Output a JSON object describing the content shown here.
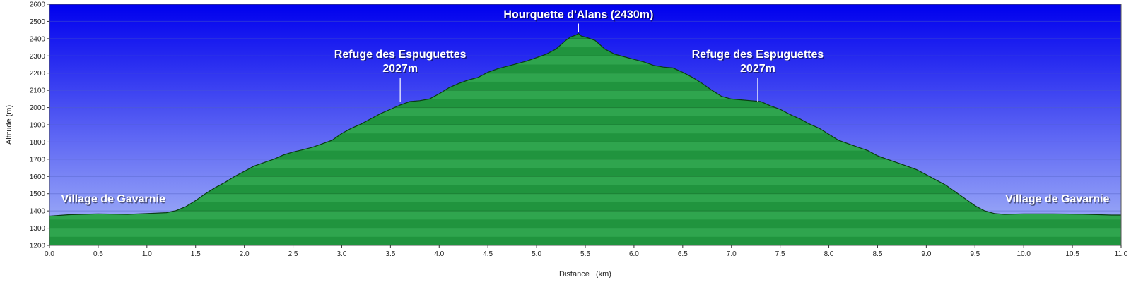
{
  "chart_data": {
    "type": "area",
    "title": "",
    "xlabel": "Distance   (km)",
    "ylabel": "Altitude (m)",
    "xlim": [
      0,
      11.0
    ],
    "ylim": [
      1200,
      2600
    ],
    "xticks": [
      "0.0",
      "0.5",
      "1.0",
      "1.5",
      "2.0",
      "2.5",
      "3.0",
      "3.5",
      "4.0",
      "4.5",
      "5.0",
      "5.5",
      "6.0",
      "6.5",
      "7.0",
      "7.5",
      "8.0",
      "8.5",
      "9.0",
      "9.5",
      "10.0",
      "10.5",
      "11.0"
    ],
    "yticks": [
      "1200",
      "1300",
      "1400",
      "1500",
      "1600",
      "1700",
      "1800",
      "1900",
      "2000",
      "2100",
      "2200",
      "2300",
      "2400",
      "2500",
      "2600"
    ],
    "grid": true,
    "colors": {
      "sky_top": "#0000ee",
      "sky_bottom": "#aabaf8",
      "fill": "#23a043",
      "outline": "#0a3c12"
    },
    "series": [
      {
        "x": [
          0.0,
          0.2,
          0.5,
          0.8,
          1.0,
          1.2,
          1.3,
          1.4,
          1.5,
          1.6,
          1.7,
          1.8,
          1.9,
          2.0,
          2.1,
          2.2,
          2.3,
          2.4,
          2.5,
          2.6,
          2.7,
          2.8,
          2.9,
          3.0,
          3.1,
          3.2,
          3.3,
          3.4,
          3.5,
          3.6,
          3.7,
          3.8,
          3.9,
          4.0,
          4.1,
          4.2,
          4.3,
          4.4,
          4.5,
          4.6,
          4.7,
          4.8,
          4.9,
          5.0,
          5.1,
          5.2,
          5.3,
          5.35,
          5.4,
          5.43,
          5.46,
          5.5,
          5.6,
          5.7,
          5.8,
          5.9,
          6.0,
          6.1,
          6.2,
          6.3,
          6.4,
          6.5,
          6.6,
          6.7,
          6.8,
          6.9,
          7.0,
          7.1,
          7.2,
          7.3,
          7.4,
          7.5,
          7.6,
          7.7,
          7.8,
          7.9,
          8.0,
          8.1,
          8.2,
          8.3,
          8.4,
          8.5,
          8.6,
          8.7,
          8.8,
          8.9,
          9.0,
          9.1,
          9.2,
          9.3,
          9.4,
          9.5,
          9.6,
          9.7,
          9.8,
          10.0,
          10.3,
          10.6,
          10.9,
          11.0
        ],
        "values": [
          1370,
          1378,
          1383,
          1380,
          1385,
          1390,
          1402,
          1425,
          1460,
          1500,
          1535,
          1565,
          1600,
          1630,
          1660,
          1680,
          1700,
          1725,
          1742,
          1755,
          1770,
          1790,
          1810,
          1850,
          1880,
          1905,
          1935,
          1965,
          1990,
          2015,
          2035,
          2040,
          2050,
          2080,
          2115,
          2140,
          2160,
          2175,
          2205,
          2225,
          2240,
          2255,
          2270,
          2290,
          2310,
          2340,
          2390,
          2410,
          2420,
          2430,
          2415,
          2410,
          2390,
          2340,
          2310,
          2295,
          2280,
          2265,
          2245,
          2235,
          2230,
          2205,
          2175,
          2140,
          2100,
          2065,
          2050,
          2045,
          2040,
          2035,
          2010,
          1990,
          1960,
          1935,
          1905,
          1880,
          1845,
          1810,
          1790,
          1770,
          1750,
          1720,
          1700,
          1680,
          1660,
          1640,
          1610,
          1580,
          1550,
          1510,
          1470,
          1430,
          1400,
          1385,
          1380,
          1383,
          1383,
          1381,
          1376,
          1376
        ]
      }
    ],
    "annotations": [
      {
        "lines": [
          "Hourquette d'Alans (2430m)"
        ],
        "x": 5.43,
        "y": 2430,
        "marker": true
      },
      {
        "lines": [
          "Refuge des Espuguettes",
          "2027m"
        ],
        "x": 3.6,
        "y": 2027,
        "marker": true
      },
      {
        "lines": [
          "Refuge des Espuguettes",
          "2027m"
        ],
        "x": 7.27,
        "y": 2027,
        "marker": true
      },
      {
        "lines": [
          "Village de Gavarnie"
        ],
        "x": 0.12,
        "y": 1450,
        "marker": false,
        "anchor": "start"
      },
      {
        "lines": [
          "Village de Gavarnie"
        ],
        "x": 10.88,
        "y": 1450,
        "marker": false,
        "anchor": "end"
      }
    ]
  }
}
